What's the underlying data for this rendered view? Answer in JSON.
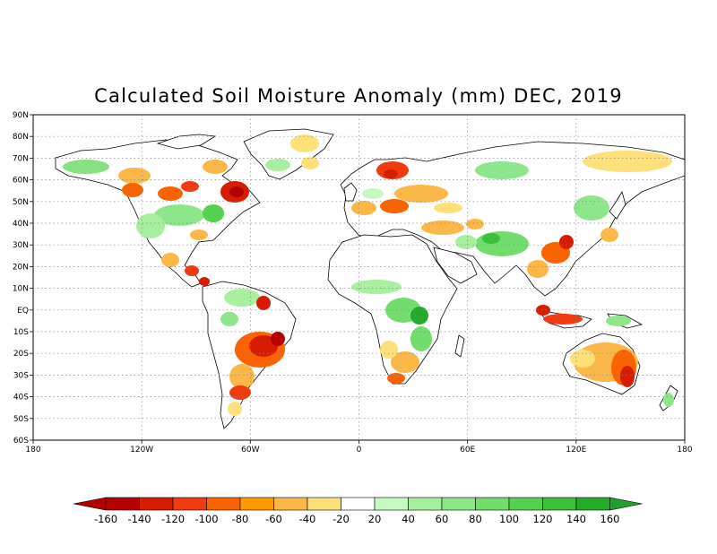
{
  "title": "Calculated Soil Moisture Anomaly (mm) DEC, 2019",
  "map": {
    "projection": "equirectangular",
    "lon_range": [
      -180,
      180
    ],
    "lat_range": [
      -60,
      90
    ],
    "grid": "dotted",
    "lat_ticks": [
      {
        "value": 90,
        "label": "90N"
      },
      {
        "value": 80,
        "label": "80N"
      },
      {
        "value": 70,
        "label": "70N"
      },
      {
        "value": 60,
        "label": "60N"
      },
      {
        "value": 50,
        "label": "50N"
      },
      {
        "value": 40,
        "label": "40N"
      },
      {
        "value": 30,
        "label": "30N"
      },
      {
        "value": 20,
        "label": "20N"
      },
      {
        "value": 10,
        "label": "10N"
      },
      {
        "value": 0,
        "label": "EQ"
      },
      {
        "value": -10,
        "label": "10S"
      },
      {
        "value": -20,
        "label": "20S"
      },
      {
        "value": -30,
        "label": "30S"
      },
      {
        "value": -40,
        "label": "40S"
      },
      {
        "value": -50,
        "label": "50S"
      },
      {
        "value": -60,
        "label": "60S"
      }
    ],
    "lon_ticks": [
      {
        "value": -180,
        "label": "180"
      },
      {
        "value": -120,
        "label": "120W"
      },
      {
        "value": -60,
        "label": "60W"
      },
      {
        "value": 0,
        "label": "0"
      },
      {
        "value": 60,
        "label": "60E"
      },
      {
        "value": 120,
        "label": "120E"
      },
      {
        "value": 180,
        "label": "180"
      }
    ]
  },
  "colorbar": {
    "labels": [
      "-160",
      "-140",
      "-120",
      "-100",
      "-80",
      "-60",
      "-40",
      "-20",
      "20",
      "40",
      "60",
      "80",
      "100",
      "120",
      "140",
      "160"
    ],
    "low_arrow_color": "#b40000",
    "high_arrow_color": "#20a030",
    "colors": [
      "#b40000",
      "#d81c00",
      "#f03a10",
      "#fa6400",
      "#ff9a00",
      "#fbb848",
      "#fde07a",
      "#ffffff",
      "#c4fac0",
      "#a8f0a0",
      "#8ee68a",
      "#72dc6c",
      "#55d050",
      "#3cc03a",
      "#26aa2a"
    ]
  },
  "colors": {
    "land": "#ffffff",
    "coast": "#000000",
    "grid": "#888888"
  }
}
